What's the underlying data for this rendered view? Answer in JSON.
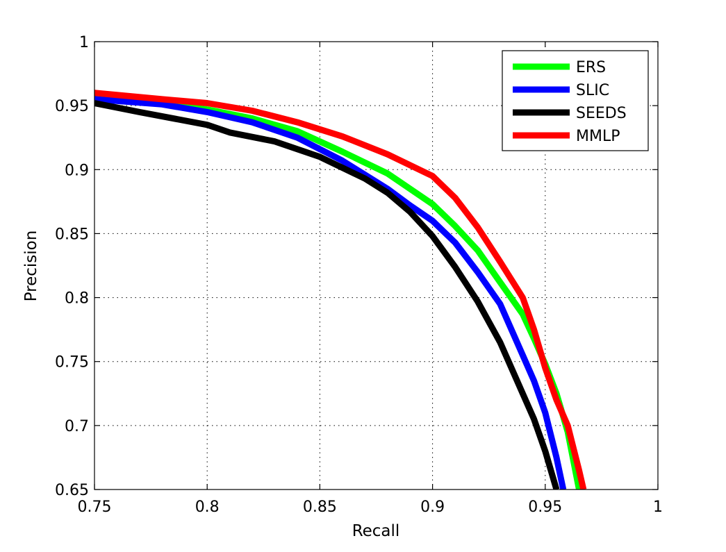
{
  "chart_data": {
    "type": "line",
    "title": "",
    "xlabel": "Recall",
    "ylabel": "Precision",
    "xlim": [
      0.75,
      1
    ],
    "ylim": [
      0.65,
      1
    ],
    "xticks": [
      0.75,
      0.8,
      0.85,
      0.9,
      0.95,
      1
    ],
    "yticks": [
      0.65,
      0.7,
      0.75,
      0.8,
      0.85,
      0.9,
      0.95,
      1
    ],
    "xtick_labels": [
      "0.75",
      "0.8",
      "0.85",
      "0.9",
      "0.95",
      "1"
    ],
    "ytick_labels": [
      "0.65",
      "0.7",
      "0.75",
      "0.8",
      "0.85",
      "0.9",
      "0.95",
      "1"
    ],
    "grid": true,
    "legend_position": "top-right",
    "series": [
      {
        "name": "ERS",
        "color": "#00ff00",
        "x": [
          0.75,
          0.78,
          0.8,
          0.82,
          0.84,
          0.86,
          0.88,
          0.9,
          0.91,
          0.92,
          0.93,
          0.94,
          0.945,
          0.95,
          0.955,
          0.96,
          0.965
        ],
        "y": [
          0.958,
          0.952,
          0.947,
          0.94,
          0.93,
          0.914,
          0.897,
          0.873,
          0.856,
          0.837,
          0.812,
          0.787,
          0.768,
          0.748,
          0.725,
          0.695,
          0.65
        ]
      },
      {
        "name": "SLIC",
        "color": "#0000ff",
        "x": [
          0.75,
          0.78,
          0.8,
          0.82,
          0.84,
          0.86,
          0.88,
          0.89,
          0.9,
          0.91,
          0.92,
          0.93,
          0.94,
          0.945,
          0.95,
          0.955,
          0.958
        ],
        "y": [
          0.955,
          0.951,
          0.945,
          0.937,
          0.925,
          0.907,
          0.885,
          0.872,
          0.86,
          0.843,
          0.82,
          0.795,
          0.755,
          0.735,
          0.71,
          0.675,
          0.65
        ]
      },
      {
        "name": "SEEDS",
        "color": "#000000",
        "x": [
          0.75,
          0.77,
          0.8,
          0.81,
          0.83,
          0.85,
          0.87,
          0.88,
          0.89,
          0.9,
          0.91,
          0.92,
          0.93,
          0.94,
          0.945,
          0.95,
          0.955
        ],
        "y": [
          0.952,
          0.945,
          0.935,
          0.929,
          0.922,
          0.91,
          0.893,
          0.882,
          0.867,
          0.848,
          0.824,
          0.797,
          0.765,
          0.725,
          0.705,
          0.68,
          0.65
        ]
      },
      {
        "name": "MMLP",
        "color": "#ff0000",
        "x": [
          0.75,
          0.78,
          0.8,
          0.82,
          0.84,
          0.86,
          0.88,
          0.9,
          0.91,
          0.92,
          0.93,
          0.94,
          0.945,
          0.95,
          0.955,
          0.96,
          0.965,
          0.967
        ],
        "y": [
          0.96,
          0.955,
          0.952,
          0.946,
          0.937,
          0.926,
          0.912,
          0.895,
          0.878,
          0.855,
          0.828,
          0.8,
          0.775,
          0.745,
          0.72,
          0.7,
          0.665,
          0.65
        ]
      }
    ]
  }
}
